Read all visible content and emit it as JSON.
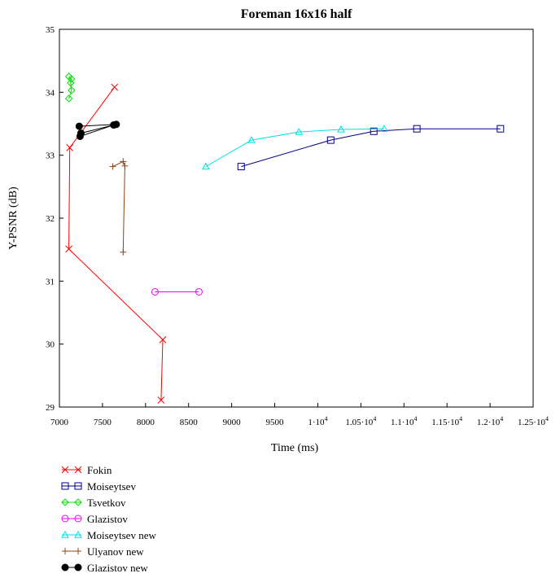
{
  "chart_data": {
    "type": "line",
    "title": "Foreman 16x16 half",
    "xlabel": "Time (ms)",
    "ylabel": "Y-PSNR (dB)",
    "xlim": [
      7000,
      12500
    ],
    "ylim": [
      29,
      35
    ],
    "grid": false,
    "legend_position": "bottom-left",
    "x_ticks": [
      {
        "value": 7000,
        "label": "7000"
      },
      {
        "value": 7500,
        "label": "7500"
      },
      {
        "value": 8000,
        "label": "8000"
      },
      {
        "value": 8500,
        "label": "8500"
      },
      {
        "value": 9000,
        "label": "9000"
      },
      {
        "value": 9500,
        "label": "9500"
      },
      {
        "value": 10000,
        "label": "1·10",
        "exp": "4"
      },
      {
        "value": 10500,
        "label": "1.05·10",
        "exp": "4"
      },
      {
        "value": 11000,
        "label": "1.1·10",
        "exp": "4"
      },
      {
        "value": 11500,
        "label": "1.15·10",
        "exp": "4"
      },
      {
        "value": 12000,
        "label": "1.2·10",
        "exp": "4"
      },
      {
        "value": 12500,
        "label": "1.25·10",
        "exp": "4"
      }
    ],
    "y_ticks": [
      {
        "value": 29,
        "label": "29"
      },
      {
        "value": 30,
        "label": "30"
      },
      {
        "value": 31,
        "label": "31"
      },
      {
        "value": 32,
        "label": "32"
      },
      {
        "value": 33,
        "label": "33"
      },
      {
        "value": 34,
        "label": "34"
      },
      {
        "value": 35,
        "label": "35"
      }
    ],
    "series": [
      {
        "name": "Fokin",
        "color": "#ff0000",
        "marker": "x",
        "points": [
          [
            7640,
            34.08
          ],
          [
            7120,
            33.12
          ],
          [
            7110,
            31.51
          ],
          [
            8200,
            30.07
          ],
          [
            8180,
            29.11
          ]
        ]
      },
      {
        "name": "Moiseytsev",
        "color": "#00008b",
        "marker": "square",
        "points": [
          [
            9110,
            32.82
          ],
          [
            10150,
            33.24
          ],
          [
            10650,
            33.38
          ],
          [
            11150,
            33.42
          ],
          [
            12120,
            33.42
          ]
        ]
      },
      {
        "name": "Tsvetkov",
        "color": "#00e000",
        "marker": "diamond",
        "points": [
          [
            7110,
            34.25
          ],
          [
            7140,
            34.21
          ],
          [
            7130,
            34.15
          ],
          [
            7140,
            34.03
          ],
          [
            7110,
            33.9
          ]
        ]
      },
      {
        "name": "Glazistov",
        "color": "#ee00ee",
        "marker": "circle",
        "points": [
          [
            8110,
            30.83
          ],
          [
            8620,
            30.83
          ]
        ]
      },
      {
        "name": "Moiseytsev new",
        "color": "#00e0e0",
        "marker": "triangle",
        "points": [
          [
            8700,
            32.82
          ],
          [
            9230,
            33.24
          ],
          [
            9780,
            33.37
          ],
          [
            10270,
            33.41
          ],
          [
            10770,
            33.42
          ]
        ]
      },
      {
        "name": "Ulyanov new",
        "color": "#8b4513",
        "marker": "plus",
        "points": [
          [
            7620,
            32.82
          ],
          [
            7740,
            32.9
          ],
          [
            7760,
            32.83
          ],
          [
            7740,
            31.46
          ]
        ]
      },
      {
        "name": "Glazistov new",
        "color": "#000000",
        "marker": "dot",
        "points": [
          [
            7230,
            33.46
          ],
          [
            7660,
            33.49
          ],
          [
            7250,
            33.35
          ],
          [
            7240,
            33.3
          ],
          [
            7630,
            33.48
          ]
        ]
      }
    ]
  }
}
